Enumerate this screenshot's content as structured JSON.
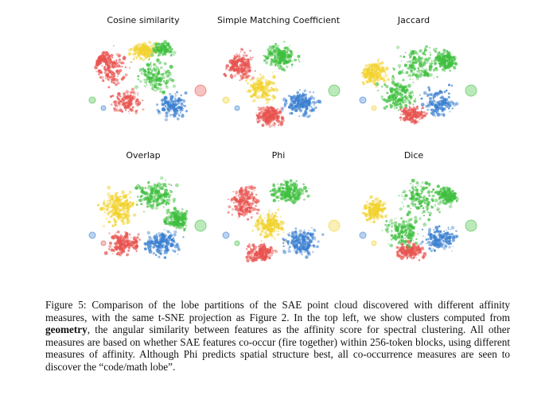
{
  "panels": [
    {
      "title": "Cosine similarity",
      "palette": [
        "#e8534f",
        "#e8534f",
        "#3fbf3f",
        "#3a7fd0",
        "#f2d22e",
        "#e8534f",
        "#3fbf3f"
      ],
      "layout": "cosine"
    },
    {
      "title": "Simple Matching Coefficient",
      "palette": [
        "#e8534f",
        "#3fbf3f",
        "#f2d22e",
        "#3a7fd0",
        "#e8534f"
      ],
      "layout": "smc"
    },
    {
      "title": "Jaccard",
      "palette": [
        "#3fbf3f",
        "#3fbf3f",
        "#3a7fd0",
        "#f2d22e",
        "#e8534f",
        "#3fbf3f"
      ],
      "layout": "jaccard"
    },
    {
      "title": "Overlap",
      "palette": [
        "#f2d22e",
        "#3fbf3f",
        "#3a7fd0",
        "#e8534f",
        "#3fbf3f"
      ],
      "layout": "overlap"
    },
    {
      "title": "Phi",
      "palette": [
        "#e8534f",
        "#f2d22e",
        "#3a7fd0",
        "#3fbf3f",
        "#e8534f"
      ],
      "layout": "phi"
    },
    {
      "title": "Dice",
      "palette": [
        "#3fbf3f",
        "#3fbf3f",
        "#3a7fd0",
        "#f2d22e",
        "#e8534f",
        "#3fbf3f"
      ],
      "layout": "dice"
    }
  ],
  "caption": {
    "part1": "Figure 5: Comparison of the lobe partitions of the SAE point cloud discovered with different affinity measures, with the same t-SNE projection as Figure 2. In the top left, we show clusters computed from ",
    "bold": "geometry",
    "part2": ", the angular similarity between features as the affinity score for spectral clustering. All other measures are based on whether SAE features co-occur (fire together) within 256-token blocks, using different measures of affinity. Although Phi predicts spatial structure best, all co-occurrence measures are seen to discover the “code/math lobe”."
  }
}
